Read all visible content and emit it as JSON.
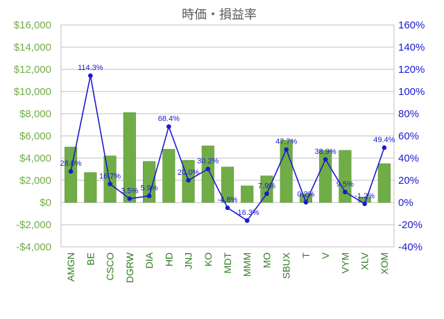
{
  "chart_data": {
    "type": "bar+line",
    "title": "時価・損益率",
    "categories": [
      "AMGN",
      "BE",
      "CSCO",
      "DGRW",
      "DIA",
      "HD",
      "JNJ",
      "KO",
      "MDT",
      "MMM",
      "MO",
      "SBUX",
      "T",
      "V",
      "VYM",
      "XLV",
      "XOM"
    ],
    "series": [
      {
        "axis": "left",
        "type": "bar",
        "values": [
          5000,
          2700,
          4200,
          8100,
          3700,
          4800,
          3800,
          5100,
          3200,
          1500,
          2400,
          5600,
          800,
          4700,
          4700,
          500,
          3500
        ],
        "color": "#70ad47"
      },
      {
        "axis": "right",
        "type": "line",
        "values": [
          28.0,
          114.3,
          16.7,
          3.5,
          5.9,
          68.4,
          20.0,
          30.2,
          -4.8,
          -16.3,
          7.9,
          47.7,
          0.2,
          38.9,
          9.5,
          -1.2,
          49.4
        ],
        "labels": [
          "28.0%",
          "114.3%",
          "16.7%",
          "3.5%",
          "5.9%",
          "68.4%",
          "20.0%",
          "30.2%",
          "-4.8%",
          "-16.3%",
          "7.9%",
          "47.7%",
          "0.2%",
          "38.9%",
          "9.5%",
          "-1.2%",
          "49.4%"
        ],
        "color": "#1919d2"
      }
    ],
    "left_axis": {
      "ylim": [
        -4000,
        16000
      ],
      "ticks": [
        -4000,
        -2000,
        0,
        2000,
        4000,
        6000,
        8000,
        10000,
        12000,
        14000,
        16000
      ],
      "tick_labels": [
        "-$4,000",
        "-$2,000",
        "$0",
        "$2,000",
        "$4,000",
        "$6,000",
        "$8,000",
        "$10,000",
        "$12,000",
        "$14,000",
        "$16,000"
      ],
      "color": "#70ad47"
    },
    "right_axis": {
      "ylim": [
        -40,
        160
      ],
      "ticks": [
        -40,
        -20,
        0,
        20,
        40,
        60,
        80,
        100,
        120,
        140,
        160
      ],
      "tick_labels": [
        "-40%",
        "-20%",
        "0%",
        "20%",
        "40%",
        "60%",
        "80%",
        "100%",
        "120%",
        "140%",
        "160%"
      ],
      "color": "#1919d2"
    },
    "grid": true,
    "legend": "none"
  },
  "colors": {
    "bar": "#70ad47",
    "line": "#1919d2",
    "category_label": "#2e7d1f",
    "grid": "#bfbfbf",
    "title": "#595959"
  }
}
